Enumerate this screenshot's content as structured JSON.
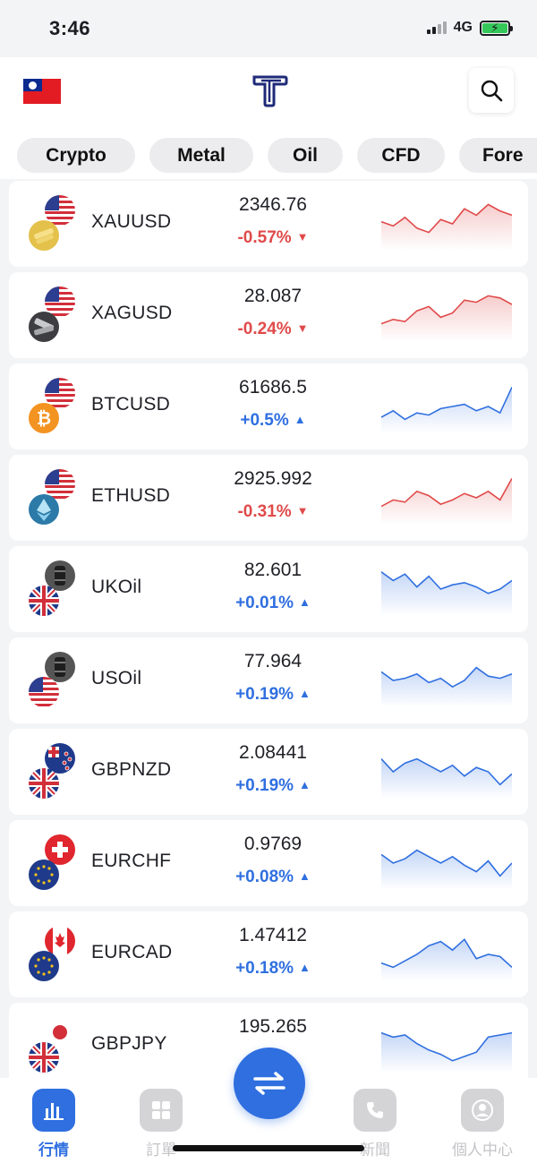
{
  "status_bar": {
    "time": "3:46",
    "network": "4G"
  },
  "header": {
    "logo": "T",
    "region_flag": "taiwan-flag",
    "search_icon": "search-icon"
  },
  "tabs": [
    "Crypto",
    "Metal",
    "Oil",
    "CFD",
    "Fore"
  ],
  "colors": {
    "accent": "#2f6fe0",
    "down": "#e04a4a",
    "up": "#2f6fe0"
  },
  "quotes": [
    {
      "symbol": "XAUUSD",
      "price": "2346.76",
      "change": "-0.57%",
      "direction": "down",
      "base": "gold",
      "quote": "us",
      "spark": [
        0.45,
        0.55,
        0.35,
        0.6,
        0.7,
        0.4,
        0.5,
        0.15,
        0.3,
        0.05,
        0.2,
        0.3
      ]
    },
    {
      "symbol": "XAGUSD",
      "price": "28.087",
      "change": "-0.24%",
      "direction": "down",
      "base": "silver",
      "quote": "us",
      "spark": [
        0.7,
        0.6,
        0.65,
        0.4,
        0.3,
        0.55,
        0.45,
        0.15,
        0.2,
        0.05,
        0.1,
        0.25
      ]
    },
    {
      "symbol": "BTCUSD",
      "price": "61686.5",
      "change": "+0.5%",
      "direction": "up",
      "base": "btc",
      "quote": "us",
      "spark": [
        0.75,
        0.6,
        0.8,
        0.65,
        0.7,
        0.55,
        0.5,
        0.45,
        0.6,
        0.5,
        0.65,
        0.05
      ]
    },
    {
      "symbol": "ETHUSD",
      "price": "2925.992",
      "change": "-0.31%",
      "direction": "down",
      "base": "eth",
      "quote": "us",
      "spark": [
        0.7,
        0.55,
        0.6,
        0.35,
        0.45,
        0.65,
        0.55,
        0.4,
        0.5,
        0.35,
        0.55,
        0.05
      ]
    },
    {
      "symbol": "UKOil",
      "price": "82.601",
      "change": "+0.01%",
      "direction": "up",
      "base": "uk",
      "quote": "oil",
      "spark": [
        0.1,
        0.3,
        0.15,
        0.45,
        0.2,
        0.5,
        0.4,
        0.35,
        0.45,
        0.6,
        0.5,
        0.3
      ]
    },
    {
      "symbol": "USOil",
      "price": "77.964",
      "change": "+0.19%",
      "direction": "up",
      "base": "us",
      "quote": "oil",
      "spark": [
        0.3,
        0.5,
        0.45,
        0.35,
        0.55,
        0.45,
        0.65,
        0.5,
        0.2,
        0.4,
        0.45,
        0.35
      ]
    },
    {
      "symbol": "GBPNZD",
      "price": "2.08441",
      "change": "+0.19%",
      "direction": "up",
      "base": "uk",
      "quote": "nz",
      "spark": [
        0.2,
        0.5,
        0.3,
        0.2,
        0.35,
        0.5,
        0.35,
        0.6,
        0.4,
        0.5,
        0.8,
        0.55
      ]
    },
    {
      "symbol": "EURCHF",
      "price": "0.9769",
      "change": "+0.08%",
      "direction": "up",
      "base": "eu",
      "quote": "ch",
      "spark": [
        0.3,
        0.5,
        0.4,
        0.2,
        0.35,
        0.5,
        0.35,
        0.55,
        0.7,
        0.45,
        0.8,
        0.5
      ]
    },
    {
      "symbol": "EURCAD",
      "price": "1.47412",
      "change": "+0.18%",
      "direction": "up",
      "base": "eu",
      "quote": "ca",
      "spark": [
        0.7,
        0.8,
        0.65,
        0.5,
        0.3,
        0.2,
        0.4,
        0.15,
        0.6,
        0.5,
        0.55,
        0.8
      ]
    },
    {
      "symbol": "GBPJPY",
      "price": "195.265",
      "change": "",
      "direction": "up",
      "base": "uk",
      "quote": "jp",
      "spark": [
        0.2,
        0.3,
        0.25,
        0.45,
        0.6,
        0.7,
        0.85,
        0.75,
        0.65,
        0.3,
        0.25,
        0.2
      ]
    }
  ],
  "bottom_nav": {
    "items": [
      {
        "label": "行情",
        "icon": "chart-icon",
        "active": true
      },
      {
        "label": "訂單",
        "icon": "grid-icon",
        "active": false
      },
      {
        "label": "新聞",
        "icon": "phone-icon",
        "active": false
      },
      {
        "label": "個人中心",
        "icon": "user-icon",
        "active": false
      }
    ],
    "fab_icon": "swap-icon"
  }
}
